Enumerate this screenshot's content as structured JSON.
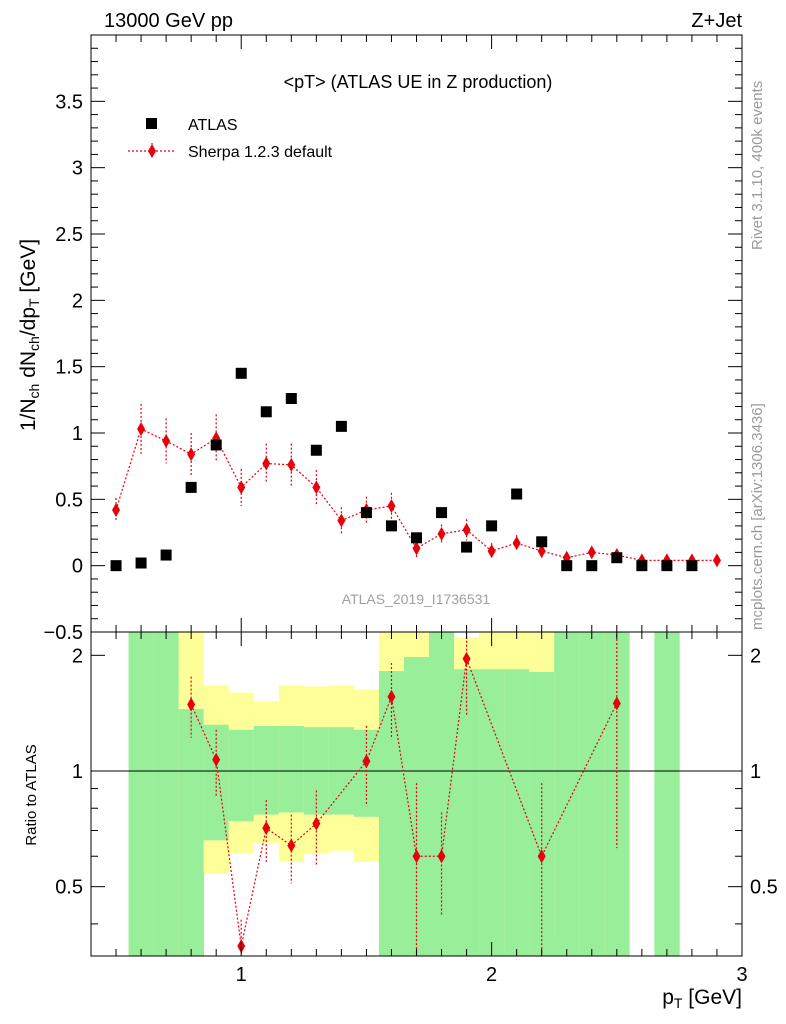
{
  "header": {
    "left_label": "13000 GeV pp",
    "right_label": "Z+Jet"
  },
  "side_labels": {
    "rivet": "Rivet 3.1.10,  400k events",
    "mcplots": "mcplots.cern.ch [arXiv:1306.3436]"
  },
  "chart_data": [
    {
      "type": "scatter",
      "title": "<pT> (ATLAS UE in Z production)",
      "watermark": "ATLAS_2019_I1736531",
      "ylabel": "1/N_ch dN_ch/dp_T [GeV]",
      "xlim": [
        0.4,
        3.0
      ],
      "ylim": [
        -0.5,
        4.0
      ],
      "yticks": [
        -0.5,
        0,
        0.5,
        1,
        1.5,
        2,
        2.5,
        3,
        3.5
      ],
      "ytick_labels": [
        "−0.5",
        "0",
        "0.5",
        "1",
        "1.5",
        "2",
        "2.5",
        "3",
        "3.5"
      ],
      "legend_position": "top-left",
      "series": [
        {
          "name": "ATLAS",
          "marker": "square",
          "color": "#000000",
          "x": [
            0.5,
            0.6,
            0.7,
            0.8,
            0.9,
            1.0,
            1.1,
            1.2,
            1.3,
            1.4,
            1.5,
            1.6,
            1.7,
            1.8,
            1.9,
            2.0,
            2.1,
            2.2,
            2.3,
            2.4,
            2.5,
            2.6,
            2.7,
            2.8
          ],
          "y": [
            0.0,
            0.02,
            0.08,
            0.59,
            0.91,
            1.45,
            1.16,
            1.26,
            0.87,
            1.05,
            0.4,
            0.3,
            0.21,
            0.4,
            0.14,
            0.3,
            0.54,
            0.18,
            0.0,
            0.0,
            0.06,
            0.0,
            0.0,
            0.0
          ]
        },
        {
          "name": "Sherpa 1.2.3 default",
          "marker": "diamond",
          "line": "dotted",
          "color": "#e8000b",
          "x": [
            0.5,
            0.6,
            0.7,
            0.8,
            0.9,
            1.0,
            1.1,
            1.2,
            1.3,
            1.4,
            1.5,
            1.6,
            1.7,
            1.8,
            1.9,
            2.0,
            2.1,
            2.2,
            2.3,
            2.4,
            2.5,
            2.6,
            2.7,
            2.8,
            2.9
          ],
          "y": [
            0.42,
            1.03,
            0.94,
            0.84,
            0.96,
            0.59,
            0.77,
            0.76,
            0.59,
            0.34,
            0.42,
            0.45,
            0.13,
            0.24,
            0.27,
            0.11,
            0.17,
            0.11,
            0.06,
            0.1,
            0.08,
            0.04,
            0.04,
            0.04,
            0.04
          ],
          "yerr": [
            0.09,
            0.19,
            0.17,
            0.16,
            0.18,
            0.14,
            0.15,
            0.16,
            0.13,
            0.1,
            0.1,
            0.1,
            0.07,
            0.07,
            0.08,
            0.06,
            0.06,
            0.05,
            0.04,
            0.04,
            0.04,
            0.02,
            0.02,
            0.02,
            0.02
          ]
        }
      ]
    },
    {
      "type": "scatter",
      "ylabel": "Ratio to ATLAS",
      "xlabel": "p_T [GeV]",
      "xlim": [
        0.4,
        3.0
      ],
      "ylim": [
        0.33,
        2.3
      ],
      "xticks": [
        1,
        2,
        3
      ],
      "xtick_labels": [
        "1",
        "2",
        "3"
      ],
      "yticks": [
        0.5,
        1,
        2
      ],
      "ytick_labels": [
        "0.5",
        "1",
        "2"
      ],
      "reference_line": 1,
      "bands": {
        "colors": {
          "inner": "#99ee99",
          "outer": "#ffff99"
        },
        "bin_edges": [
          0.55,
          0.65,
          0.75,
          0.85,
          0.95,
          1.05,
          1.15,
          1.25,
          1.35,
          1.45,
          1.55,
          1.65,
          1.75,
          1.85,
          1.95,
          2.05,
          2.15,
          2.25,
          2.35,
          2.45,
          2.55,
          2.65,
          2.75
        ],
        "inner_low": [
          0.33,
          0.33,
          0.33,
          0.66,
          0.74,
          0.77,
          0.78,
          0.77,
          0.77,
          0.76,
          0.33,
          0.33,
          0.33,
          0.33,
          0.33,
          0.33,
          0.33,
          0.33,
          0.33,
          0.33,
          null,
          0.33
        ],
        "inner_high": [
          2.3,
          2.3,
          1.45,
          1.32,
          1.28,
          1.31,
          1.31,
          1.3,
          1.3,
          1.28,
          1.82,
          1.98,
          2.3,
          1.84,
          1.84,
          1.84,
          1.81,
          2.3,
          2.3,
          2.3,
          null,
          2.3
        ],
        "outer_low": [
          0.33,
          0.33,
          0.33,
          0.54,
          0.61,
          0.65,
          0.58,
          0.61,
          0.62,
          0.58,
          0.33,
          0.33,
          0.33,
          0.33,
          0.33,
          0.33,
          0.33,
          0.37,
          0.33,
          0.33,
          null,
          null
        ],
        "outer_high": [
          2.3,
          2.3,
          2.3,
          1.67,
          1.6,
          1.52,
          1.67,
          1.66,
          1.67,
          1.63,
          2.3,
          2.3,
          2.3,
          2.23,
          2.3,
          2.3,
          2.3,
          2.3,
          2.3,
          2.3,
          null,
          null
        ]
      },
      "series": [
        {
          "name": "Sherpa 1.2.3 default",
          "marker": "diamond",
          "line": "dotted",
          "color": "#e8000b",
          "x": [
            0.8,
            0.9,
            1.0,
            1.1,
            1.2,
            1.3,
            1.5,
            1.6,
            1.7,
            1.8,
            1.9,
            2.2,
            2.5
          ],
          "y": [
            1.49,
            1.07,
            0.35,
            0.71,
            0.64,
            0.73,
            1.06,
            1.56,
            0.6,
            0.6,
            1.96,
            0.6,
            1.5
          ],
          "yerr": [
            0.27,
            0.21,
            0.06,
            0.13,
            0.13,
            0.16,
            0.25,
            0.35,
            0.33,
            0.18,
            0.56,
            0.33,
            0.87
          ]
        }
      ]
    }
  ]
}
